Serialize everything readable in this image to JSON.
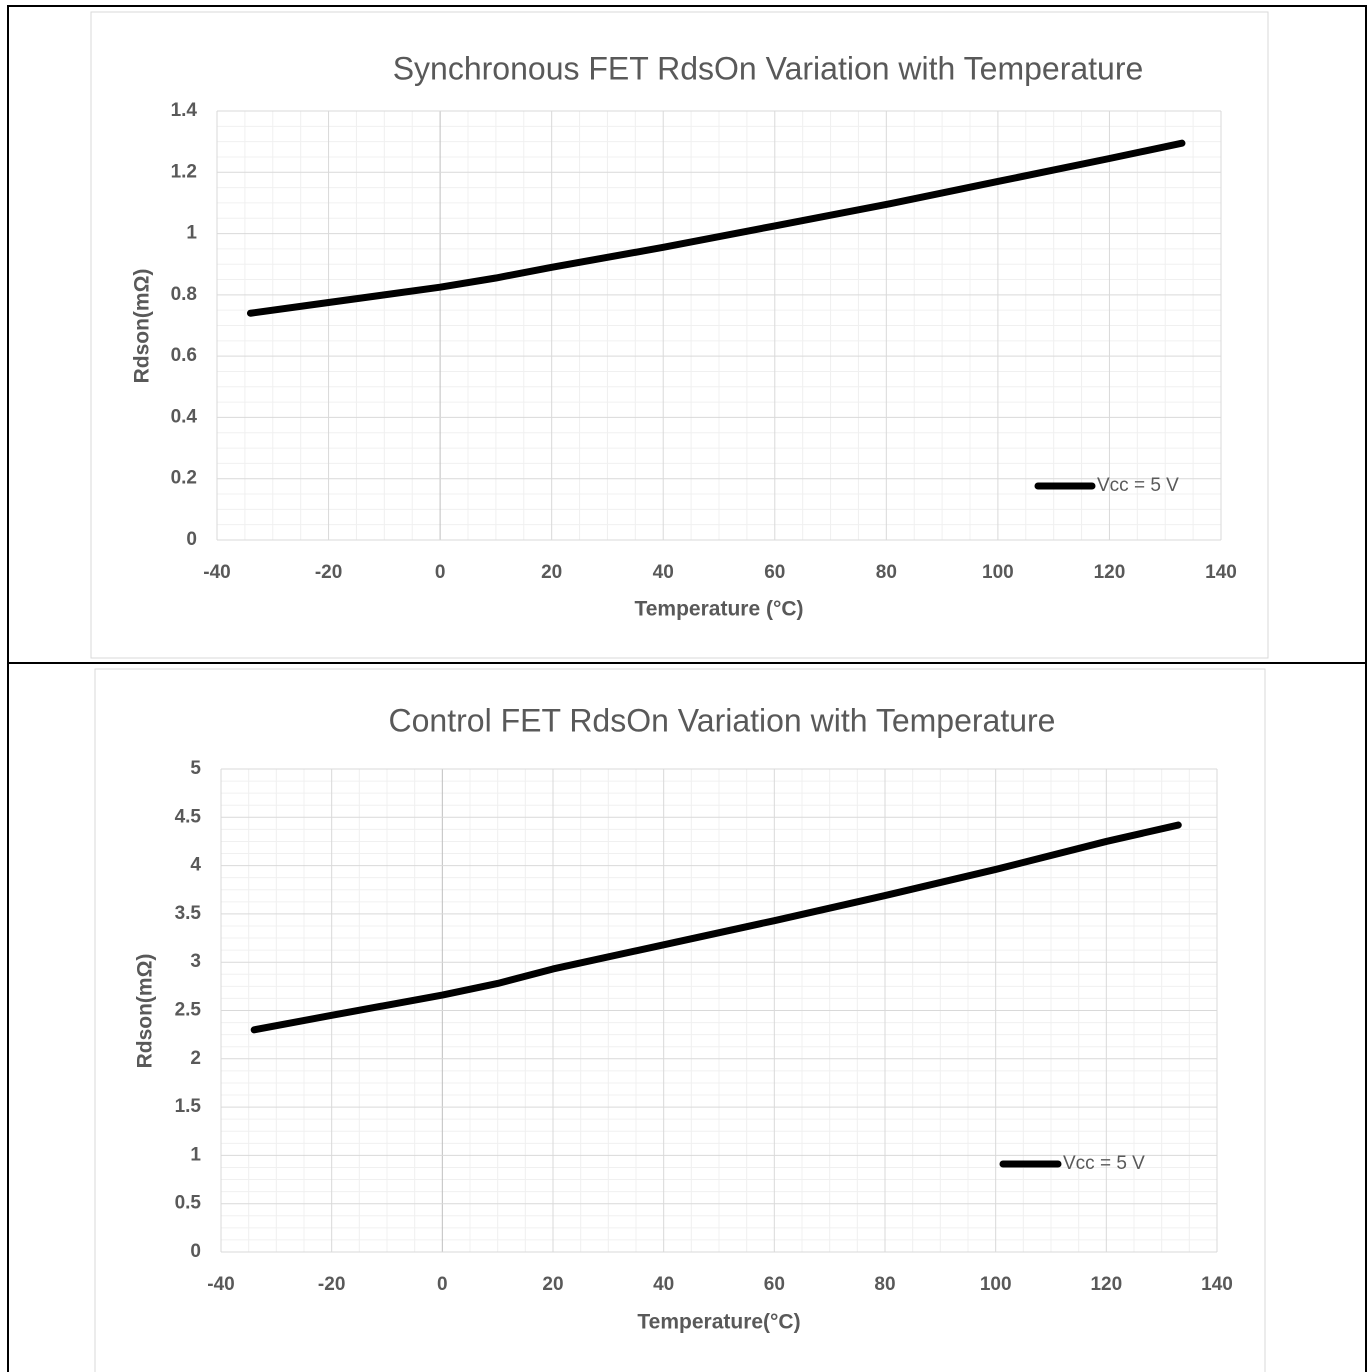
{
  "chart_data": [
    {
      "type": "line",
      "title": "Synchronous FET RdsOn Variation with Temperature",
      "x_label": "Temperature (°C)",
      "y_label": "Rdson(mΩ)",
      "xlim": [
        -40,
        140
      ],
      "xticks": [
        -40,
        -20,
        0,
        20,
        40,
        60,
        80,
        100,
        120,
        140
      ],
      "ylim": [
        0,
        1.4
      ],
      "yticks": [
        0,
        0.2,
        0.4,
        0.6,
        0.8,
        1,
        1.2,
        1.4
      ],
      "grid": true,
      "legend": "lower right",
      "x": [
        -34,
        -20,
        0,
        10,
        20,
        40,
        60,
        80,
        100,
        120,
        133
      ],
      "series": [
        {
          "name": "Vcc = 5 V",
          "color": "#000000",
          "values": [
            0.74,
            0.775,
            0.825,
            0.855,
            0.89,
            0.955,
            1.025,
            1.095,
            1.17,
            1.245,
            1.295
          ]
        }
      ]
    },
    {
      "type": "line",
      "title": "Control FET RdsOn Variation with Temperature",
      "x_label": "Temperature(°C)",
      "y_label": "Rdson(mΩ)",
      "xlim": [
        -40,
        140
      ],
      "xticks": [
        -40,
        -20,
        0,
        20,
        40,
        60,
        80,
        100,
        120,
        140
      ],
      "ylim": [
        0,
        5
      ],
      "yticks": [
        0,
        0.5,
        1,
        1.5,
        2,
        2.5,
        3,
        3.5,
        4,
        4.5,
        5
      ],
      "grid": true,
      "legend": "lower right",
      "x": [
        -34,
        -20,
        0,
        10,
        20,
        40,
        60,
        80,
        100,
        120,
        133
      ],
      "series": [
        {
          "name": "Vcc = 5 V",
          "color": "#000000",
          "values": [
            2.3,
            2.45,
            2.66,
            2.78,
            2.93,
            3.18,
            3.43,
            3.69,
            3.96,
            4.25,
            4.42
          ]
        }
      ]
    }
  ]
}
